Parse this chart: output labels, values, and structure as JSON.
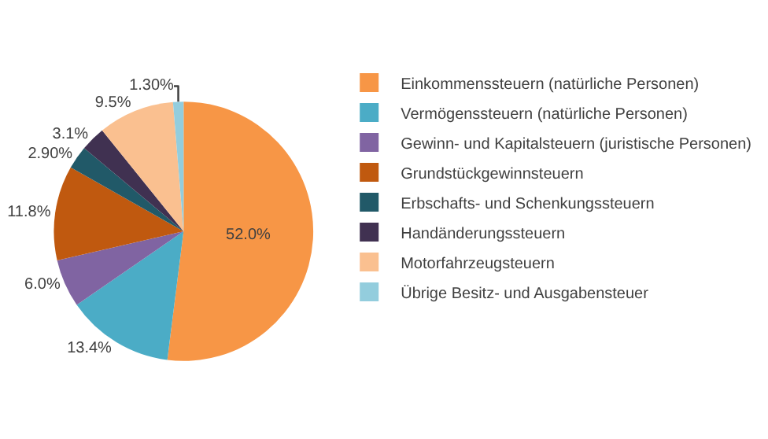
{
  "chart_data": {
    "type": "pie",
    "categories": [
      "Einkommenssteuern (natürliche Personen)",
      "Vermögenssteuern (natürliche Personen)",
      "Gewinn- und Kapitalsteuern (juristische Personen)",
      "Grundstückgewinnsteuern",
      "Erbschafts- und Schenkungssteuern",
      "Handänderungssteuern",
      "Motorfahrzeugsteuern",
      "Übrige Besitz- und Ausgabensteuer"
    ],
    "values": [
      52.0,
      13.4,
      6.0,
      11.8,
      2.9,
      3.1,
      9.5,
      1.3
    ],
    "value_labels": [
      "52.0%",
      "13.4%",
      "6.0%",
      "11.8%",
      "2.90%",
      "3.1%",
      "9.5%",
      "1.30%"
    ],
    "colors": [
      "#f79646",
      "#4bacc6",
      "#8064a2",
      "#c0590f",
      "#215968",
      "#403151",
      "#fac090",
      "#93cddd"
    ],
    "legend": "right"
  }
}
